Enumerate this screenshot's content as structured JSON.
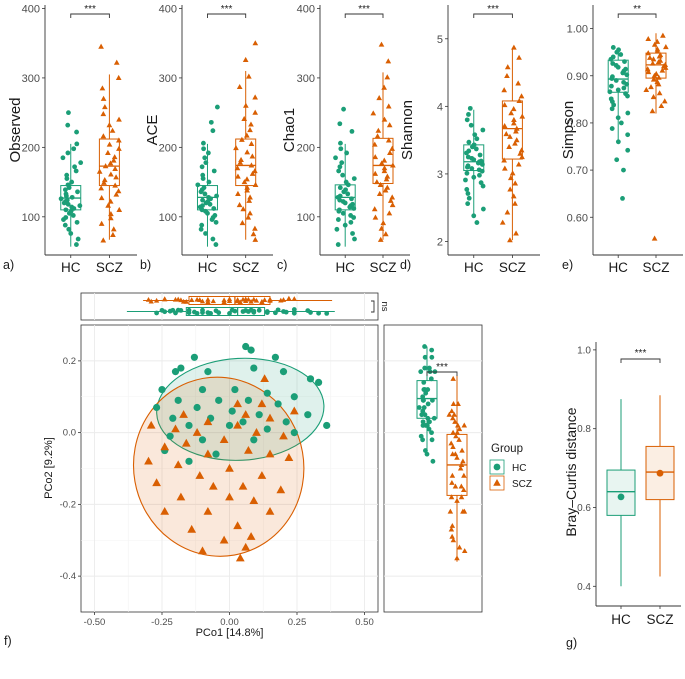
{
  "colors": {
    "hc": "#1b9e77",
    "scz": "#d95f02",
    "grid": "#ebebeb",
    "axis": "#333333",
    "text": "#1a1a1a"
  },
  "groups": [
    "HC",
    "SCZ"
  ],
  "legend": {
    "title": "Group",
    "items": [
      "HC",
      "SCZ"
    ]
  },
  "chart_data": [
    {
      "panel": "a)",
      "type": "box",
      "ylabel": "Observed",
      "ylim": [
        45,
        405
      ],
      "yticks": [
        100,
        200,
        300,
        400
      ],
      "categories": [
        "HC",
        "SCZ"
      ],
      "significance": "***",
      "boxes": [
        {
          "group": "HC",
          "q1": 110,
          "median": 127,
          "q3": 145,
          "lo": 57,
          "hi": 205,
          "points": [
            250,
            232,
            222,
            205,
            198,
            192,
            185,
            178,
            172,
            166,
            160,
            155,
            150,
            146,
            142,
            139,
            136,
            133,
            130,
            128,
            126,
            124,
            122,
            120,
            118,
            116,
            114,
            112,
            110,
            108,
            105,
            102,
            99,
            96,
            92,
            88,
            82,
            76,
            68,
            60
          ]
        },
        {
          "group": "SCZ",
          "q1": 145,
          "median": 173,
          "q3": 212,
          "lo": 67,
          "hi": 305,
          "points": [
            345,
            322,
            300,
            285,
            270,
            258,
            248,
            240,
            232,
            224,
            216,
            210,
            204,
            198,
            192,
            186,
            181,
            177,
            173,
            169,
            165,
            161,
            157,
            153,
            149,
            145,
            141,
            137,
            132,
            127,
            122,
            116,
            110,
            104,
            98,
            90,
            82,
            74,
            66
          ]
        }
      ]
    },
    {
      "panel": "b)",
      "type": "box",
      "ylabel": "ACE",
      "ylim": [
        45,
        405
      ],
      "yticks": [
        100,
        200,
        300,
        400
      ],
      "categories": [
        "HC",
        "SCZ"
      ],
      "significance": "***",
      "boxes": [
        {
          "group": "HC",
          "q1": 110,
          "median": 128,
          "q3": 145,
          "lo": 57,
          "hi": 205,
          "points": [
            258,
            236,
            224,
            206,
            198,
            192,
            185,
            178,
            172,
            166,
            160,
            155,
            150,
            146,
            142,
            139,
            136,
            133,
            130,
            128,
            126,
            124,
            122,
            120,
            118,
            116,
            114,
            112,
            110,
            108,
            105,
            102,
            99,
            96,
            92,
            88,
            82,
            76,
            68,
            60
          ]
        },
        {
          "group": "SCZ",
          "q1": 145,
          "median": 174,
          "q3": 212,
          "lo": 67,
          "hi": 310,
          "points": [
            350,
            326,
            302,
            287,
            272,
            260,
            250,
            241,
            233,
            225,
            217,
            211,
            205,
            199,
            193,
            187,
            182,
            178,
            174,
            170,
            166,
            162,
            158,
            154,
            150,
            146,
            142,
            138,
            133,
            128,
            123,
            117,
            111,
            105,
            99,
            91,
            83,
            75,
            67
          ]
        }
      ]
    },
    {
      "panel": "c)",
      "type": "box",
      "ylabel": "Chao1",
      "ylim": [
        45,
        405
      ],
      "yticks": [
        100,
        200,
        300,
        400
      ],
      "categories": [
        "HC",
        "SCZ"
      ],
      "significance": "***",
      "boxes": [
        {
          "group": "HC",
          "q1": 110,
          "median": 128,
          "q3": 146,
          "lo": 57,
          "hi": 205,
          "points": [
            255,
            234,
            223,
            206,
            198,
            192,
            185,
            178,
            172,
            166,
            160,
            155,
            150,
            146,
            142,
            139,
            136,
            133,
            130,
            128,
            126,
            124,
            122,
            120,
            118,
            116,
            114,
            112,
            110,
            108,
            105,
            102,
            99,
            96,
            92,
            88,
            82,
            76,
            68,
            60
          ]
        },
        {
          "group": "SCZ",
          "q1": 148,
          "median": 174,
          "q3": 213,
          "lo": 67,
          "hi": 308,
          "points": [
            348,
            324,
            301,
            286,
            271,
            259,
            249,
            240,
            232,
            224,
            216,
            210,
            204,
            198,
            192,
            186,
            181,
            177,
            174,
            170,
            166,
            162,
            158,
            154,
            150,
            146,
            142,
            138,
            133,
            128,
            123,
            117,
            111,
            105,
            99,
            91,
            83,
            75,
            67
          ]
        }
      ]
    },
    {
      "panel": "d)",
      "type": "box",
      "ylabel": "Shannon",
      "ylim": [
        1.8,
        5.5
      ],
      "yticks": [
        2,
        3,
        4,
        5
      ],
      "categories": [
        "HC",
        "SCZ"
      ],
      "significance": "***",
      "boxes": [
        {
          "group": "HC",
          "q1": 3.05,
          "median": 3.18,
          "q3": 3.43,
          "lo": 2.35,
          "hi": 3.95,
          "points": [
            3.97,
            3.88,
            3.8,
            3.72,
            3.65,
            3.58,
            3.52,
            3.47,
            3.43,
            3.4,
            3.37,
            3.34,
            3.31,
            3.28,
            3.25,
            3.23,
            3.21,
            3.19,
            3.18,
            3.16,
            3.14,
            3.12,
            3.1,
            3.08,
            3.06,
            3.04,
            3.01,
            2.98,
            2.95,
            2.91,
            2.87,
            2.82,
            2.77,
            2.71,
            2.64,
            2.56,
            2.48,
            2.38,
            2.28
          ]
        },
        {
          "group": "SCZ",
          "q1": 3.22,
          "median": 3.67,
          "q3": 4.08,
          "lo": 2.02,
          "hi": 4.85,
          "points": [
            4.87,
            4.72,
            4.58,
            4.45,
            4.34,
            4.24,
            4.15,
            4.08,
            4.02,
            3.96,
            3.9,
            3.85,
            3.8,
            3.75,
            3.71,
            3.67,
            3.63,
            3.59,
            3.55,
            3.5,
            3.45,
            3.4,
            3.35,
            3.3,
            3.25,
            3.2,
            3.14,
            3.08,
            3.01,
            2.94,
            2.86,
            2.77,
            2.67,
            2.56,
            2.43,
            2.28,
            2.12,
            2.02
          ]
        }
      ]
    },
    {
      "panel": "e)",
      "type": "box",
      "ylabel": "Simpson",
      "ylim": [
        0.52,
        1.05
      ],
      "yticks": [
        0.6,
        0.7,
        0.8,
        0.9,
        1.0
      ],
      "categories": [
        "HC",
        "SCZ"
      ],
      "significance": "**",
      "boxes": [
        {
          "group": "HC",
          "q1": 0.865,
          "median": 0.893,
          "q3": 0.933,
          "lo": 0.76,
          "hi": 0.96,
          "points": [
            0.96,
            0.955,
            0.95,
            0.945,
            0.94,
            0.935,
            0.93,
            0.926,
            0.922,
            0.918,
            0.914,
            0.91,
            0.906,
            0.902,
            0.898,
            0.894,
            0.89,
            0.886,
            0.882,
            0.878,
            0.874,
            0.87,
            0.866,
            0.862,
            0.857,
            0.851,
            0.845,
            0.838,
            0.83,
            0.821,
            0.811,
            0.8,
            0.788,
            0.775,
            0.76,
            0.742,
            0.722,
            0.7,
            0.64
          ]
        },
        {
          "group": "SCZ",
          "q1": 0.895,
          "median": 0.923,
          "q3": 0.948,
          "lo": 0.82,
          "hi": 0.99,
          "points": [
            0.985,
            0.978,
            0.972,
            0.966,
            0.961,
            0.956,
            0.952,
            0.948,
            0.944,
            0.941,
            0.938,
            0.935,
            0.932,
            0.929,
            0.926,
            0.923,
            0.92,
            0.917,
            0.914,
            0.911,
            0.908,
            0.904,
            0.9,
            0.896,
            0.892,
            0.887,
            0.882,
            0.876,
            0.87,
            0.863,
            0.855,
            0.846,
            0.836,
            0.825,
            0.555
          ]
        }
      ]
    },
    {
      "panel": "f)",
      "type": "scatter",
      "xlabel": "PCo1 [14.8%]",
      "ylabel": "PCo2 [9.2%]",
      "xlim": [
        -0.55,
        0.55
      ],
      "ylim": [
        -0.5,
        0.3
      ],
      "xticks": [
        -0.5,
        -0.25,
        0.0,
        0.25,
        0.5
      ],
      "yticks": [
        -0.4,
        -0.2,
        0.0,
        0.2
      ],
      "ellipses": [
        {
          "group": "HC",
          "cx": 0.04,
          "cy": 0.065,
          "rx": 0.31,
          "ry": 0.142,
          "angle_deg": -3
        },
        {
          "group": "SCZ",
          "cx": -0.04,
          "cy": -0.095,
          "rx": 0.315,
          "ry": 0.25,
          "angle_deg": -10
        }
      ],
      "series": [
        {
          "name": "HC",
          "marker": "circle",
          "points": [
            [
              -0.13,
              0.21
            ],
            [
              0.06,
              0.24
            ],
            [
              0.08,
              0.23
            ],
            [
              0.17,
              0.21
            ],
            [
              -0.18,
              0.18
            ],
            [
              0.09,
              0.18
            ],
            [
              0.2,
              0.17
            ],
            [
              -0.2,
              0.17
            ],
            [
              -0.08,
              0.17
            ],
            [
              0.3,
              0.15
            ],
            [
              0.33,
              0.14
            ],
            [
              -0.25,
              0.12
            ],
            [
              -0.1,
              0.12
            ],
            [
              0.02,
              0.12
            ],
            [
              0.14,
              0.11
            ],
            [
              0.24,
              0.1
            ],
            [
              -0.19,
              0.09
            ],
            [
              -0.04,
              0.09
            ],
            [
              0.07,
              0.09
            ],
            [
              0.18,
              0.08
            ],
            [
              -0.27,
              0.07
            ],
            [
              -0.12,
              0.07
            ],
            [
              0.01,
              0.06
            ],
            [
              0.11,
              0.05
            ],
            [
              0.29,
              0.05
            ],
            [
              -0.21,
              0.04
            ],
            [
              -0.07,
              0.04
            ],
            [
              0.05,
              0.03
            ],
            [
              0.21,
              0.03
            ],
            [
              -0.15,
              0.02
            ],
            [
              0.0,
              0.02
            ],
            [
              0.14,
              0.01
            ],
            [
              0.36,
              0.02
            ],
            [
              -0.22,
              -0.01
            ],
            [
              -0.1,
              -0.02
            ],
            [
              0.09,
              -0.02
            ],
            [
              -0.24,
              -0.05
            ],
            [
              -0.05,
              -0.06
            ],
            [
              -0.15,
              -0.08
            ],
            [
              0.24,
              0.0
            ]
          ]
        },
        {
          "name": "SCZ",
          "marker": "triangle",
          "points": [
            [
              0.13,
              0.15
            ],
            [
              0.03,
              0.08
            ],
            [
              0.12,
              0.08
            ],
            [
              -0.17,
              0.05
            ],
            [
              0.06,
              0.05
            ],
            [
              0.15,
              0.04
            ],
            [
              0.24,
              0.06
            ],
            [
              -0.08,
              0.03
            ],
            [
              0.03,
              0.02
            ],
            [
              -0.29,
              0.02
            ],
            [
              -0.2,
              0.01
            ],
            [
              -0.12,
              0.0
            ],
            [
              0.1,
              0.0
            ],
            [
              0.2,
              -0.01
            ],
            [
              -0.02,
              -0.02
            ],
            [
              -0.24,
              -0.04
            ],
            [
              -0.16,
              -0.03
            ],
            [
              0.07,
              -0.05
            ],
            [
              -0.08,
              -0.06
            ],
            [
              0.15,
              -0.06
            ],
            [
              0.22,
              -0.07
            ],
            [
              -0.3,
              -0.08
            ],
            [
              -0.19,
              -0.09
            ],
            [
              0.0,
              -0.1
            ],
            [
              -0.11,
              -0.12
            ],
            [
              0.12,
              -0.12
            ],
            [
              -0.27,
              -0.14
            ],
            [
              -0.06,
              -0.15
            ],
            [
              0.05,
              -0.15
            ],
            [
              0.19,
              -0.16
            ],
            [
              -0.18,
              -0.18
            ],
            [
              0.0,
              -0.18
            ],
            [
              0.09,
              -0.19
            ],
            [
              -0.24,
              -0.22
            ],
            [
              -0.08,
              -0.22
            ],
            [
              0.15,
              -0.22
            ],
            [
              -0.14,
              -0.27
            ],
            [
              0.03,
              -0.26
            ],
            [
              -0.02,
              -0.3
            ],
            [
              0.08,
              -0.29
            ],
            [
              -0.1,
              -0.33
            ],
            [
              0.04,
              -0.35
            ],
            [
              0.06,
              -0.32
            ]
          ]
        }
      ]
    },
    {
      "panel": "f-top",
      "type": "box",
      "orientation": "horizontal",
      "significance": "ns",
      "boxes": [
        {
          "group": "SCZ",
          "q1": -0.15,
          "median": 0.02,
          "q3": 0.15,
          "lo": -0.32,
          "hi": 0.38
        },
        {
          "group": "HC",
          "q1": -0.16,
          "median": 0.03,
          "q3": 0.13,
          "lo": -0.38,
          "hi": 0.39
        }
      ]
    },
    {
      "panel": "f-right",
      "type": "box",
      "orientation": "vertical",
      "significance": "***",
      "boxes": [
        {
          "group": "HC",
          "q1": 0.04,
          "median": 0.095,
          "q3": 0.145,
          "lo": -0.05,
          "hi": 0.24
        },
        {
          "group": "SCZ",
          "q1": -0.175,
          "median": -0.09,
          "q3": -0.005,
          "lo": -0.36,
          "hi": 0.16
        }
      ]
    },
    {
      "panel": "g)",
      "type": "box",
      "ylabel": "Bray–Curtis distance",
      "ylim": [
        0.35,
        1.02
      ],
      "yticks": [
        0.4,
        0.6,
        0.8,
        1.0
      ],
      "categories": [
        "HC",
        "SCZ"
      ],
      "significance": "***",
      "boxes": [
        {
          "group": "HC",
          "q1": 0.58,
          "median": 0.64,
          "q3": 0.695,
          "lo": 0.4,
          "hi": 0.875,
          "mean": 0.627
        },
        {
          "group": "SCZ",
          "q1": 0.62,
          "median": 0.69,
          "q3": 0.755,
          "lo": 0.425,
          "hi": 0.885,
          "mean": 0.687
        }
      ]
    }
  ]
}
